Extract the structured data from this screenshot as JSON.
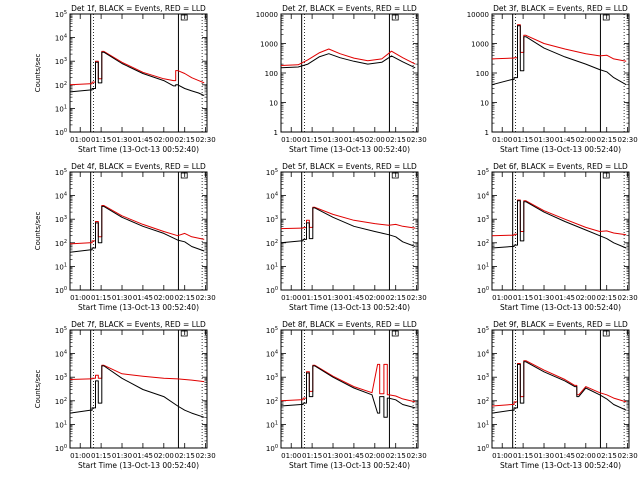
{
  "figure": {
    "xtick_labels": [
      "01:00",
      "01:15",
      "01:30",
      "01:45",
      "02:00",
      "02:15",
      "02:30"
    ],
    "colors": {
      "events": "#000000",
      "lld": "#e00000",
      "axes": "#000000"
    }
  },
  "chart_data": [
    {
      "type": "line",
      "title": "Det 1f, BLACK = Events, RED = LLD",
      "xlabel": "Start Time (13-Oct-13 00:52:40)",
      "ylabel": "Counts/sec",
      "yscale": "log",
      "ylim": [
        1,
        100000
      ],
      "ytick_labels": [
        "10^0",
        "10^1",
        "10^2",
        "10^3",
        "10^4",
        "10^5"
      ],
      "xlim": [
        "00:52:40",
        "02:31:00"
      ],
      "x": [
        "00:52:40",
        "01:07:00",
        "01:10:00",
        "01:12:00",
        "01:14:00",
        "01:17:00",
        "01:30:00",
        "01:45:00",
        "02:00:00",
        "02:07:00",
        "02:10:00",
        "02:15:00",
        "02:20:00",
        "02:25:00",
        "02:29:00"
      ],
      "grid": false,
      "legend": "none",
      "series": [
        {
          "name": "Events",
          "color": "#000000",
          "values": [
            50,
            60,
            70,
            900,
            120,
            2400,
            800,
            300,
            150,
            90,
            100,
            70,
            55,
            45,
            35
          ]
        },
        {
          "name": "LLD",
          "color": "#e00000",
          "values": [
            100,
            110,
            130,
            1000,
            180,
            2600,
            900,
            340,
            180,
            150,
            400,
            300,
            200,
            150,
            120
          ]
        }
      ]
    },
    {
      "type": "line",
      "title": "Det 2f, BLACK = Events, RED = LLD",
      "xlabel": "Start Time (13-Oct-13 00:52:40)",
      "ylabel": "",
      "yscale": "log",
      "ylim": [
        1,
        10000
      ],
      "ytick_labels": [
        "1",
        "10",
        "100",
        "1000",
        "10000"
      ],
      "xlim": [
        "00:52:40",
        "02:31:00"
      ],
      "x": [
        "00:52:40",
        "01:05:00",
        "01:12:00",
        "01:20:00",
        "01:27:00",
        "01:35:00",
        "01:45:00",
        "01:55:00",
        "02:05:00",
        "02:12:00",
        "02:20:00",
        "02:29:00"
      ],
      "grid": false,
      "legend": "none",
      "series": [
        {
          "name": "Events",
          "color": "#000000",
          "values": [
            150,
            160,
            200,
            350,
            450,
            330,
            250,
            200,
            230,
            380,
            240,
            150
          ]
        },
        {
          "name": "LLD",
          "color": "#e00000",
          "values": [
            180,
            190,
            280,
            480,
            650,
            450,
            320,
            260,
            300,
            550,
            330,
            200
          ]
        }
      ]
    },
    {
      "type": "line",
      "title": "Det 3f, BLACK = Events, RED = LLD",
      "xlabel": "Start Time (13-Oct-13 00:52:40)",
      "ylabel": "",
      "yscale": "log",
      "ylim": [
        1,
        10000
      ],
      "ytick_labels": [
        "1",
        "10",
        "100",
        "1000",
        "10000"
      ],
      "xlim": [
        "00:52:40",
        "02:31:00"
      ],
      "x": [
        "00:52:40",
        "01:07:00",
        "01:10:00",
        "01:12:00",
        "01:14:00",
        "01:17:00",
        "01:30:00",
        "01:45:00",
        "02:00:00",
        "02:10:00",
        "02:15:00",
        "02:20:00",
        "02:29:00"
      ],
      "grid": false,
      "legend": "none",
      "series": [
        {
          "name": "Events",
          "color": "#000000",
          "values": [
            40,
            60,
            70,
            4000,
            120,
            1700,
            700,
            350,
            200,
            130,
            110,
            70,
            40
          ]
        },
        {
          "name": "LLD",
          "color": "#e00000",
          "values": [
            300,
            320,
            330,
            4300,
            500,
            1900,
            1000,
            650,
            450,
            380,
            400,
            300,
            250
          ]
        }
      ]
    },
    {
      "type": "line",
      "title": "Det 4f, BLACK = Events, RED = LLD",
      "xlabel": "Start Time (13-Oct-13 00:52:40)",
      "ylabel": "Counts/sec",
      "yscale": "log",
      "ylim": [
        1,
        100000
      ],
      "ytick_labels": [
        "10^0",
        "10^1",
        "10^2",
        "10^3",
        "10^4",
        "10^5"
      ],
      "xlim": [
        "00:52:40",
        "02:31:00"
      ],
      "x": [
        "00:52:40",
        "01:07:00",
        "01:10:00",
        "01:12:00",
        "01:14:00",
        "01:17:00",
        "01:30:00",
        "01:45:00",
        "02:00:00",
        "02:10:00",
        "02:15:00",
        "02:20:00",
        "02:29:00"
      ],
      "grid": false,
      "legend": "none",
      "series": [
        {
          "name": "Events",
          "color": "#000000",
          "values": [
            40,
            50,
            60,
            700,
            100,
            3500,
            1200,
            500,
            250,
            130,
            110,
            70,
            45
          ]
        },
        {
          "name": "LLD",
          "color": "#e00000",
          "values": [
            90,
            100,
            120,
            800,
            180,
            3800,
            1400,
            600,
            300,
            200,
            250,
            180,
            140
          ]
        }
      ]
    },
    {
      "type": "line",
      "title": "Det 5f, BLACK = Events, RED = LLD",
      "xlabel": "Start Time (13-Oct-13 00:52:40)",
      "ylabel": "",
      "yscale": "log",
      "ylim": [
        1,
        100000
      ],
      "ytick_labels": [
        "10^0",
        "10^1",
        "10^2",
        "10^3",
        "10^4",
        "10^5"
      ],
      "xlim": [
        "00:52:40",
        "02:31:00"
      ],
      "x": [
        "00:52:40",
        "01:07:00",
        "01:10:00",
        "01:12:00",
        "01:14:00",
        "01:17:00",
        "01:30:00",
        "01:45:00",
        "02:00:00",
        "02:10:00",
        "02:15:00",
        "02:20:00",
        "02:29:00"
      ],
      "grid": false,
      "legend": "none",
      "series": [
        {
          "name": "Events",
          "color": "#000000",
          "values": [
            100,
            120,
            140,
            700,
            150,
            3000,
            1200,
            500,
            300,
            220,
            180,
            110,
            70
          ]
        },
        {
          "name": "LLD",
          "color": "#e00000",
          "values": [
            400,
            420,
            440,
            900,
            450,
            3200,
            1600,
            900,
            650,
            550,
            600,
            500,
            420
          ]
        }
      ]
    },
    {
      "type": "line",
      "title": "Det 6f, BLACK = Events, RED = LLD",
      "xlabel": "Start Time (13-Oct-13 00:52:40)",
      "ylabel": "",
      "yscale": "log",
      "ylim": [
        1,
        100000
      ],
      "ytick_labels": [
        "10^0",
        "10^1",
        "10^2",
        "10^3",
        "10^4",
        "10^5"
      ],
      "xlim": [
        "00:52:40",
        "02:31:00"
      ],
      "x": [
        "00:52:40",
        "01:07:00",
        "01:10:00",
        "01:12:00",
        "01:14:00",
        "01:17:00",
        "01:30:00",
        "01:45:00",
        "02:00:00",
        "02:10:00",
        "02:15:00",
        "02:20:00",
        "02:29:00"
      ],
      "grid": false,
      "legend": "none",
      "series": [
        {
          "name": "Events",
          "color": "#000000",
          "values": [
            60,
            70,
            80,
            6000,
            120,
            5500,
            2000,
            800,
            350,
            200,
            150,
            100,
            60
          ]
        },
        {
          "name": "LLD",
          "color": "#e00000",
          "values": [
            200,
            210,
            230,
            6500,
            300,
            6000,
            2300,
            1000,
            450,
            300,
            320,
            260,
            220
          ]
        }
      ]
    },
    {
      "type": "line",
      "title": "Det 7f, BLACK = Events, RED = LLD",
      "xlabel": "Start Time (13-Oct-13 00:52:40)",
      "ylabel": "Counts/sec",
      "yscale": "log",
      "ylim": [
        1,
        100000
      ],
      "ytick_labels": [
        "10^0",
        "10^1",
        "10^2",
        "10^3",
        "10^4",
        "10^5"
      ],
      "xlim": [
        "00:52:40",
        "02:31:00"
      ],
      "x": [
        "00:52:40",
        "01:07:00",
        "01:10:00",
        "01:12:00",
        "01:14:00",
        "01:17:00",
        "01:30:00",
        "01:45:00",
        "02:00:00",
        "02:10:00",
        "02:15:00",
        "02:20:00",
        "02:29:00"
      ],
      "grid": false,
      "legend": "none",
      "series": [
        {
          "name": "Events",
          "color": "#000000",
          "values": [
            30,
            40,
            50,
            700,
            80,
            3000,
            900,
            300,
            150,
            60,
            40,
            30,
            20
          ]
        },
        {
          "name": "LLD",
          "color": "#e00000",
          "values": [
            800,
            850,
            900,
            1200,
            900,
            3200,
            1400,
            1100,
            900,
            850,
            800,
            750,
            650
          ]
        }
      ]
    },
    {
      "type": "line",
      "title": "Det 8f, BLACK = Events, RED = LLD",
      "xlabel": "Start Time (13-Oct-13 00:52:40)",
      "ylabel": "",
      "yscale": "log",
      "ylim": [
        1,
        100000
      ],
      "ytick_labels": [
        "10^0",
        "10^1",
        "10^2",
        "10^3",
        "10^4",
        "10^5"
      ],
      "xlim": [
        "00:52:40",
        "02:31:00"
      ],
      "x": [
        "00:52:40",
        "01:07:00",
        "01:10:00",
        "01:12:00",
        "01:14:00",
        "01:17:00",
        "01:30:00",
        "01:45:00",
        "01:58:00",
        "02:02:00",
        "02:05:00",
        "02:08:00",
        "02:10:00",
        "02:15:00",
        "02:20:00",
        "02:29:00"
      ],
      "grid": false,
      "legend": "none",
      "series": [
        {
          "name": "Events",
          "color": "#000000",
          "values": [
            60,
            70,
            80,
            1500,
            150,
            3000,
            1000,
            350,
            180,
            30,
            150,
            20,
            130,
            110,
            70,
            50
          ]
        },
        {
          "name": "LLD",
          "color": "#e00000",
          "values": [
            100,
            110,
            130,
            1700,
            250,
            3200,
            1100,
            400,
            220,
            3500,
            200,
            3500,
            180,
            160,
            120,
            90
          ]
        }
      ]
    },
    {
      "type": "line",
      "title": "Det 9f, BLACK = Events, RED = LLD",
      "xlabel": "Start Time (13-Oct-13 00:52:40)",
      "ylabel": "",
      "yscale": "log",
      "ylim": [
        1,
        100000
      ],
      "ytick_labels": [
        "10^0",
        "10^1",
        "10^2",
        "10^3",
        "10^4",
        "10^5"
      ],
      "xlim": [
        "00:52:40",
        "02:31:00"
      ],
      "x": [
        "00:52:40",
        "01:07:00",
        "01:10:00",
        "01:12:00",
        "01:14:00",
        "01:17:00",
        "01:30:00",
        "01:45:00",
        "01:52:00",
        "01:55:00",
        "02:00:00",
        "02:10:00",
        "02:15:00",
        "02:20:00",
        "02:29:00"
      ],
      "grid": false,
      "legend": "none",
      "series": [
        {
          "name": "Events",
          "color": "#000000",
          "values": [
            30,
            40,
            50,
            3500,
            80,
            4500,
            1700,
            700,
            400,
            150,
            350,
            180,
            120,
            70,
            40
          ]
        },
        {
          "name": "LLD",
          "color": "#e00000",
          "values": [
            60,
            70,
            90,
            3800,
            150,
            5000,
            2000,
            800,
            450,
            180,
            400,
            220,
            180,
            130,
            90
          ]
        }
      ]
    }
  ]
}
